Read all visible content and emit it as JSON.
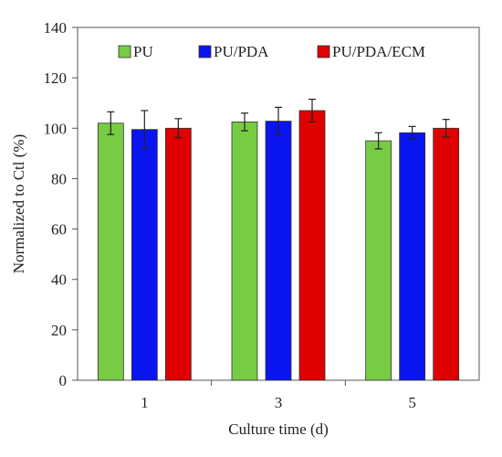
{
  "chart_data": {
    "type": "bar",
    "title": "",
    "xlabel": "Culture time (d)",
    "ylabel": "Normalized to Ctl (%)",
    "ylim": [
      0,
      140
    ],
    "yticks": [
      0,
      20,
      40,
      60,
      80,
      100,
      120,
      140
    ],
    "categories": [
      "1",
      "3",
      "5"
    ],
    "series": [
      {
        "name": "PU",
        "color": "#77cc44",
        "values": [
          102,
          102.5,
          95
        ],
        "errors": [
          4.5,
          3.5,
          3.2
        ]
      },
      {
        "name": "PU/PDA",
        "color": "#0a14ee",
        "values": [
          99.5,
          102.8,
          98.2
        ],
        "errors": [
          7.5,
          5.5,
          2.5
        ]
      },
      {
        "name": "PU/PDA/ECM",
        "color": "#e00000",
        "values": [
          100,
          107,
          100
        ],
        "errors": [
          3.8,
          4.5,
          3.5
        ]
      }
    ],
    "legend": "top-inside",
    "grid": false,
    "error_bars": true
  }
}
